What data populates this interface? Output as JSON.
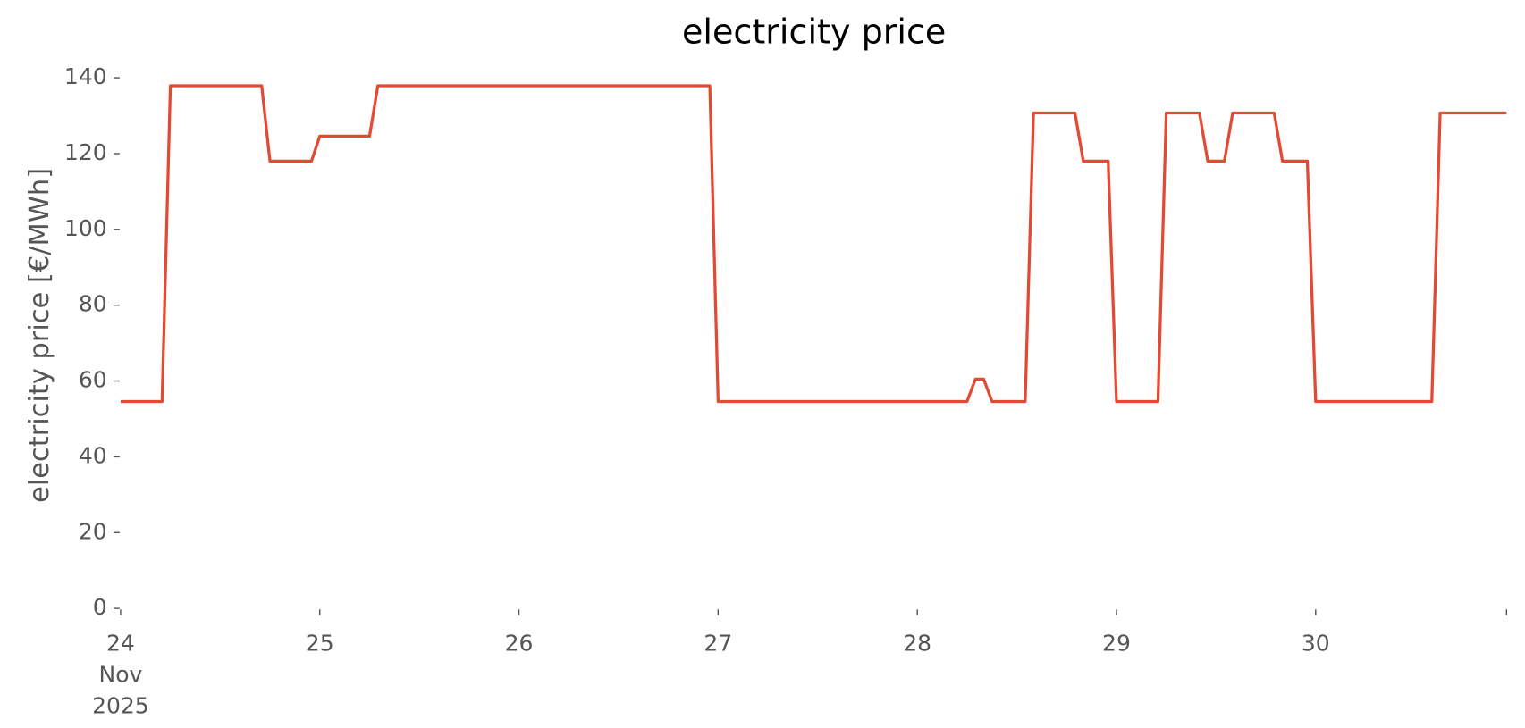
{
  "chart_data": {
    "type": "line",
    "title": "electricity price",
    "ylabel": "electricity price [€/MWh]",
    "x": [
      "2025-11-24T00:00",
      "2025-11-24T05:00",
      "2025-11-24T06:00",
      "2025-11-24T17:00",
      "2025-11-24T18:00",
      "2025-11-24T23:00",
      "2025-11-25T00:00",
      "2025-11-25T06:00",
      "2025-11-25T07:00",
      "2025-11-26T23:00",
      "2025-11-27T00:00",
      "2025-11-28T06:00",
      "2025-11-28T07:00",
      "2025-11-28T08:00",
      "2025-11-28T09:00",
      "2025-11-28T13:00",
      "2025-11-28T14:00",
      "2025-11-28T19:00",
      "2025-11-28T20:00",
      "2025-11-28T23:00",
      "2025-11-29T00:00",
      "2025-11-29T05:00",
      "2025-11-29T06:00",
      "2025-11-29T10:00",
      "2025-11-29T11:00",
      "2025-11-29T13:00",
      "2025-11-29T14:00",
      "2025-11-29T19:00",
      "2025-11-29T20:00",
      "2025-11-29T23:00",
      "2025-11-30T00:00",
      "2025-11-30T14:00",
      "2025-11-30T15:00",
      "2025-11-30T23:00"
    ],
    "series": [
      {
        "name": "electricity price",
        "color": "#e24a33",
        "values": [
          54.6,
          54.6,
          137.9,
          137.9,
          118,
          118,
          124.6,
          124.6,
          137.9,
          137.9,
          54.6,
          54.6,
          60.5,
          60.5,
          54.6,
          54.6,
          130.7,
          130.7,
          118,
          118,
          54.6,
          54.6,
          130.7,
          130.7,
          118,
          118,
          130.7,
          130.7,
          118,
          118,
          54.6,
          54.6,
          130.7,
          130.7
        ]
      }
    ],
    "xlim": [
      "2025-11-24T00:00",
      "2025-11-30T23:00"
    ],
    "xticks": [
      {
        "value": "2025-11-24T00:00",
        "label": "24\nNov\n2025"
      },
      {
        "value": "2025-11-25T00:00",
        "label": "25"
      },
      {
        "value": "2025-11-26T00:00",
        "label": "26"
      },
      {
        "value": "2025-11-27T00:00",
        "label": "27"
      },
      {
        "value": "2025-11-28T00:00",
        "label": "28"
      },
      {
        "value": "2025-11-29T00:00",
        "label": "29"
      },
      {
        "value": "2025-11-30T00:00",
        "label": "30"
      },
      {
        "value": "2025-11-30T23:00",
        "label": null
      }
    ],
    "ylim": [
      0,
      140
    ],
    "yticks": [
      0,
      20,
      40,
      60,
      80,
      100,
      120,
      140
    ],
    "grid": false
  }
}
